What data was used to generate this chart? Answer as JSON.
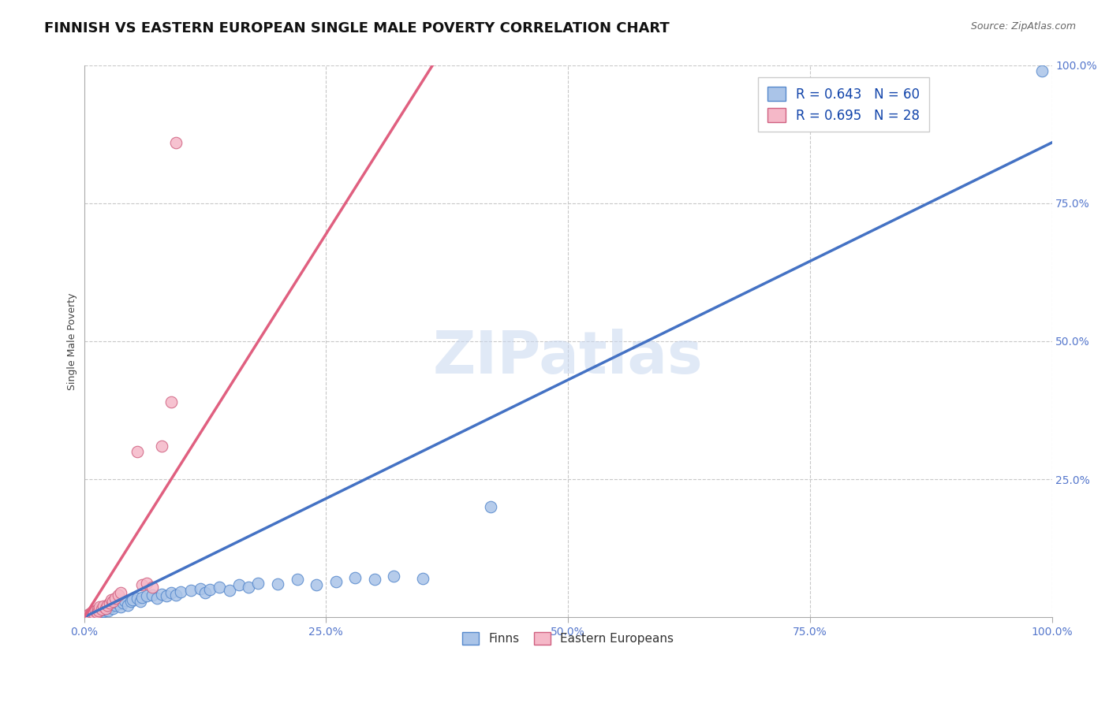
{
  "title": "FINNISH VS EASTERN EUROPEAN SINGLE MALE POVERTY CORRELATION CHART",
  "source": "Source: ZipAtlas.com",
  "ylabel": "Single Male Poverty",
  "xlim": [
    0,
    1
  ],
  "ylim": [
    0,
    1
  ],
  "xticks": [
    0.0,
    0.25,
    0.5,
    0.75,
    1.0
  ],
  "yticks": [
    0.0,
    0.25,
    0.5,
    0.75,
    1.0
  ],
  "xticklabels": [
    "0.0%",
    "25.0%",
    "50.0%",
    "75.0%",
    "100.0%"
  ],
  "yticklabels": [
    "",
    "25.0%",
    "50.0%",
    "75.0%",
    "100.0%"
  ],
  "background_color": "#ffffff",
  "grid_color": "#c8c8c8",
  "finn_color": "#aac4e8",
  "finn_edge_color": "#5588cc",
  "finn_line_color": "#4472c4",
  "ee_color": "#f5b8c8",
  "ee_edge_color": "#d06080",
  "ee_line_color": "#e06080",
  "legend_finn_R": "R = 0.643",
  "legend_finn_N": "N = 60",
  "legend_ee_R": "R = 0.695",
  "legend_ee_N": "N = 28",
  "watermark": "ZIPatlas",
  "tick_color": "#5577cc",
  "title_fontsize": 13,
  "axis_label_fontsize": 9,
  "tick_fontsize": 10,
  "legend_fontsize": 12,
  "finn_points": [
    [
      0.003,
      0.002
    ],
    [
      0.005,
      0.004
    ],
    [
      0.007,
      0.003
    ],
    [
      0.008,
      0.006
    ],
    [
      0.009,
      0.005
    ],
    [
      0.01,
      0.008
    ],
    [
      0.011,
      0.004
    ],
    [
      0.012,
      0.007
    ],
    [
      0.013,
      0.01
    ],
    [
      0.014,
      0.006
    ],
    [
      0.015,
      0.009
    ],
    [
      0.016,
      0.012
    ],
    [
      0.017,
      0.008
    ],
    [
      0.018,
      0.011
    ],
    [
      0.019,
      0.014
    ],
    [
      0.02,
      0.01
    ],
    [
      0.022,
      0.013
    ],
    [
      0.023,
      0.016
    ],
    [
      0.025,
      0.012
    ],
    [
      0.026,
      0.018
    ],
    [
      0.028,
      0.02
    ],
    [
      0.03,
      0.016
    ],
    [
      0.032,
      0.022
    ],
    [
      0.035,
      0.024
    ],
    [
      0.038,
      0.019
    ],
    [
      0.04,
      0.026
    ],
    [
      0.042,
      0.03
    ],
    [
      0.045,
      0.022
    ],
    [
      0.048,
      0.028
    ],
    [
      0.05,
      0.032
    ],
    [
      0.055,
      0.034
    ],
    [
      0.058,
      0.028
    ],
    [
      0.06,
      0.036
    ],
    [
      0.065,
      0.038
    ],
    [
      0.07,
      0.04
    ],
    [
      0.075,
      0.035
    ],
    [
      0.08,
      0.042
    ],
    [
      0.085,
      0.038
    ],
    [
      0.09,
      0.044
    ],
    [
      0.095,
      0.04
    ],
    [
      0.1,
      0.046
    ],
    [
      0.11,
      0.048
    ],
    [
      0.12,
      0.052
    ],
    [
      0.125,
      0.044
    ],
    [
      0.13,
      0.05
    ],
    [
      0.14,
      0.055
    ],
    [
      0.15,
      0.048
    ],
    [
      0.16,
      0.058
    ],
    [
      0.17,
      0.055
    ],
    [
      0.18,
      0.062
    ],
    [
      0.2,
      0.06
    ],
    [
      0.22,
      0.068
    ],
    [
      0.24,
      0.058
    ],
    [
      0.26,
      0.065
    ],
    [
      0.28,
      0.072
    ],
    [
      0.3,
      0.068
    ],
    [
      0.32,
      0.075
    ],
    [
      0.35,
      0.07
    ],
    [
      0.42,
      0.2
    ],
    [
      0.99,
      0.99
    ]
  ],
  "ee_points": [
    [
      0.003,
      0.003
    ],
    [
      0.005,
      0.006
    ],
    [
      0.006,
      0.004
    ],
    [
      0.008,
      0.008
    ],
    [
      0.009,
      0.01
    ],
    [
      0.01,
      0.007
    ],
    [
      0.012,
      0.012
    ],
    [
      0.013,
      0.009
    ],
    [
      0.014,
      0.015
    ],
    [
      0.015,
      0.011
    ],
    [
      0.016,
      0.018
    ],
    [
      0.018,
      0.014
    ],
    [
      0.02,
      0.02
    ],
    [
      0.022,
      0.016
    ],
    [
      0.024,
      0.022
    ],
    [
      0.026,
      0.026
    ],
    [
      0.028,
      0.032
    ],
    [
      0.03,
      0.028
    ],
    [
      0.032,
      0.035
    ],
    [
      0.035,
      0.04
    ],
    [
      0.038,
      0.045
    ],
    [
      0.055,
      0.3
    ],
    [
      0.06,
      0.058
    ],
    [
      0.065,
      0.062
    ],
    [
      0.07,
      0.055
    ],
    [
      0.08,
      0.31
    ],
    [
      0.09,
      0.39
    ],
    [
      0.095,
      0.86
    ]
  ]
}
